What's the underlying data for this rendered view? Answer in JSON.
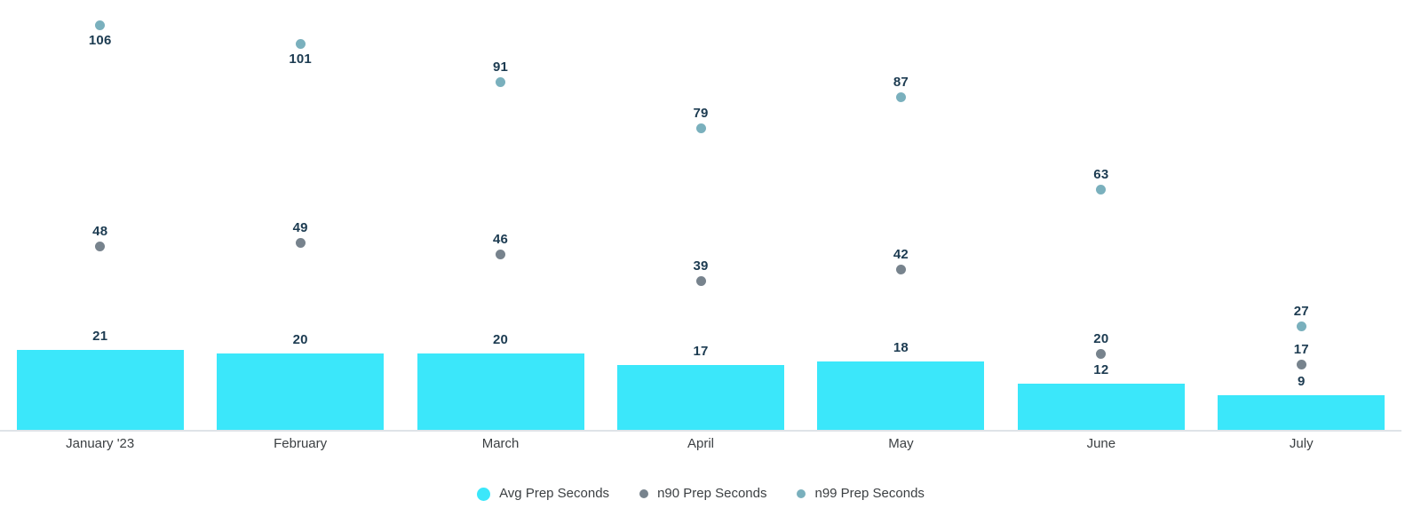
{
  "chart_data": {
    "type": "bar",
    "subtype": "combo-bar-and-points",
    "title": "",
    "xlabel": "",
    "ylabel": "",
    "categories": [
      "January '23",
      "February",
      "March",
      "April",
      "May",
      "June",
      "July"
    ],
    "series": [
      {
        "name": "Avg Prep Seconds",
        "render": "bar",
        "color": "#3be7fa",
        "values": [
          21,
          20,
          20,
          17,
          18,
          12,
          9
        ]
      },
      {
        "name": "n90 Prep Seconds",
        "render": "point",
        "color": "#77838d",
        "values": [
          48,
          49,
          46,
          39,
          42,
          20,
          17
        ]
      },
      {
        "name": "n99 Prep Seconds",
        "render": "point",
        "color": "#7ab0bd",
        "values": [
          106,
          101,
          91,
          79,
          87,
          63,
          27
        ]
      }
    ],
    "ylim": [
      0,
      112.5
    ],
    "grid": false,
    "y_axis_visible": false,
    "data_labels_visible": true,
    "legend_position": "bottom-center",
    "colors": {
      "annotation_text": "#1c3b51",
      "axis_label_text": "#3c4043",
      "legend_text": "#3c4043",
      "baseline": "#dfe3e8",
      "background": "#ffffff"
    }
  }
}
